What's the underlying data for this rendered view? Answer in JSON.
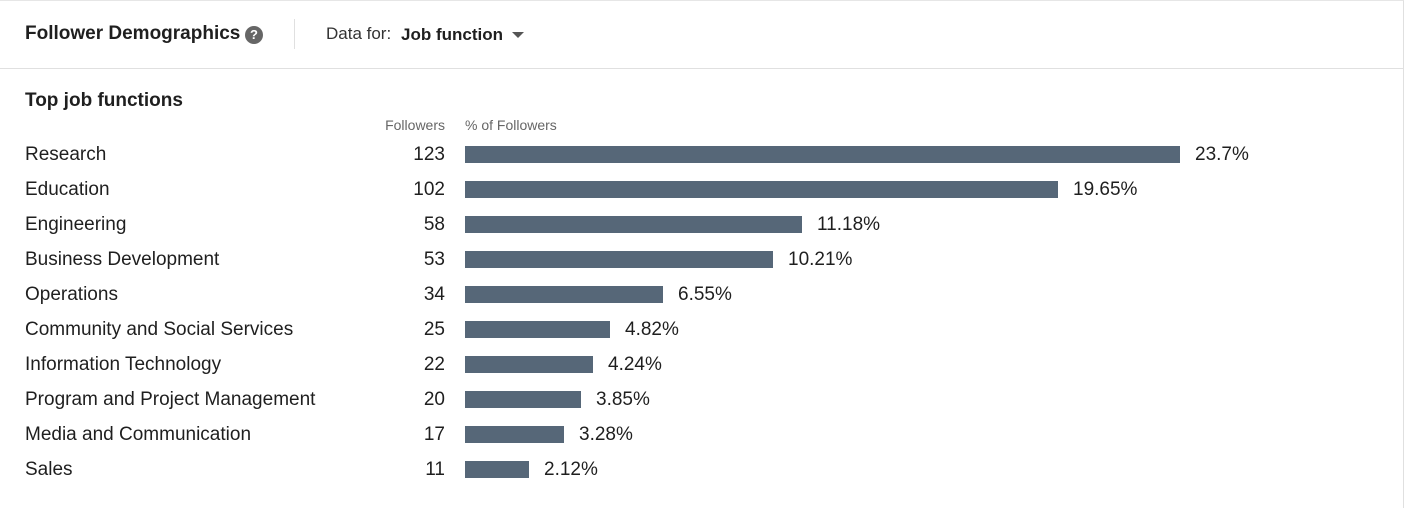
{
  "header": {
    "title": "Follower Demographics",
    "help_icon": "question-circle-icon",
    "data_for_label": "Data for:",
    "data_for_value": "Job function",
    "dropdown_icon": "caret-down-icon"
  },
  "section": {
    "title": "Top job functions",
    "col_followers": "Followers",
    "col_pct": "% of Followers"
  },
  "colors": {
    "bar": "#566778"
  },
  "chart_data": {
    "type": "bar",
    "orientation": "horizontal",
    "categories": [
      "Research",
      "Education",
      "Engineering",
      "Business Development",
      "Operations",
      "Community and Social Services",
      "Information Technology",
      "Program and Project Management",
      "Media and Communication",
      "Sales"
    ],
    "followers": [
      "123",
      "102",
      "58",
      "53",
      "34",
      "25",
      "22",
      "20",
      "17",
      "11"
    ],
    "values": [
      23.7,
      19.65,
      11.18,
      10.21,
      6.55,
      4.82,
      4.24,
      3.85,
      3.28,
      2.12
    ],
    "value_labels": [
      "23.7%",
      "19.65%",
      "11.18%",
      "10.21%",
      "6.55%",
      "4.82%",
      "4.24%",
      "3.85%",
      "3.28%",
      "2.12%"
    ]
  }
}
